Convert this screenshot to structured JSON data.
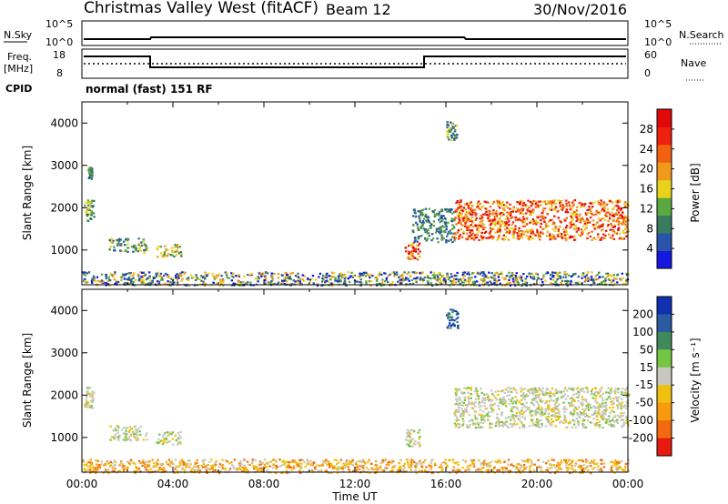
{
  "header": {
    "station": "Christmas Valley West (fitACF)",
    "beam": "Beam 12",
    "date": "30/Nov/2016"
  },
  "nsky_panel": {
    "left_label": "N.Sky",
    "right_label": "N.Search",
    "left_ticks": [
      "10^5",
      "10^0"
    ],
    "right_ticks": [
      "10^5",
      "10^0"
    ]
  },
  "freq_panel": {
    "left_label": "Freq.",
    "left_unit": "[MHz]",
    "right_label": "Nave",
    "left_ticks": [
      "18",
      "8"
    ],
    "right_ticks": [
      "60",
      "0"
    ]
  },
  "cpid": {
    "label": "CPID",
    "value": "normal (fast) 151 RF"
  },
  "chart_data": [
    {
      "type": "heatmap",
      "title": "",
      "ylabel": "Slant Range [km]",
      "xlabel": "",
      "xlim": [
        "00:00",
        "24:00"
      ],
      "ylim": [
        180,
        4500
      ],
      "y_ticks": [
        "1000",
        "2000",
        "3000",
        "4000"
      ],
      "colorbar": {
        "label": "Power [dB]",
        "ticks": [
          "4",
          "8",
          "12",
          "16",
          "20",
          "24",
          "28"
        ],
        "range": [
          0,
          32
        ],
        "colors": [
          "#1418e0",
          "#2a54a8",
          "#3a7a60",
          "#5aa840",
          "#e8d21c",
          "#f09a1c",
          "#f26012",
          "#ee2010",
          "#e00808"
        ]
      },
      "regions": [
        {
          "time": [
            "00:15",
            "00:25"
          ],
          "range": [
            2700,
            3000
          ],
          "level": "low"
        },
        {
          "time": [
            "00:05",
            "00:30"
          ],
          "range": [
            1700,
            2200
          ],
          "level": "low-mid"
        },
        {
          "time": [
            "01:10",
            "02:50"
          ],
          "range": [
            950,
            1300
          ],
          "level": "low-mid"
        },
        {
          "time": [
            "03:15",
            "04:20"
          ],
          "range": [
            850,
            1150
          ],
          "level": "mid"
        },
        {
          "time": [
            "00:00",
            "24:00"
          ],
          "range": [
            180,
            500
          ],
          "level": "mixed"
        },
        {
          "time": [
            "14:10",
            "14:50"
          ],
          "range": [
            800,
            1200
          ],
          "level": "high"
        },
        {
          "time": [
            "14:30",
            "16:20"
          ],
          "range": [
            1200,
            2000
          ],
          "level": "low"
        },
        {
          "time": [
            "16:00",
            "16:30"
          ],
          "range": [
            3600,
            4050
          ],
          "level": "low-mid"
        },
        {
          "time": [
            "16:20",
            "24:00"
          ],
          "range": [
            1250,
            2200
          ],
          "level": "high"
        }
      ]
    },
    {
      "type": "heatmap",
      "title": "",
      "ylabel": "Slant Range [km]",
      "xlabel": "Time UT",
      "xlim": [
        "00:00",
        "24:00"
      ],
      "ylim": [
        180,
        4500
      ],
      "x_ticks": [
        "00:00",
        "04:00",
        "08:00",
        "12:00",
        "16:00",
        "20:00",
        "00:00"
      ],
      "y_ticks": [
        "1000",
        "2000",
        "3000",
        "4000"
      ],
      "colorbar": {
        "label": "Velocity [m s⁻¹]",
        "ticks": [
          "200",
          "100",
          "50",
          "15",
          "-15",
          "-50",
          "-100",
          "-200"
        ],
        "range": [
          -250,
          250
        ],
        "colors": [
          "#1030b0",
          "#2a5aa0",
          "#3f8a5a",
          "#76c646",
          "#c8c8c0",
          "#f0c010",
          "#f89a10",
          "#f26a10",
          "#e81a10"
        ]
      },
      "regions": [
        {
          "time": [
            "00:05",
            "00:30"
          ],
          "range": [
            1700,
            2200
          ],
          "level": "ground"
        },
        {
          "time": [
            "01:10",
            "02:50"
          ],
          "range": [
            950,
            1300
          ],
          "level": "ground"
        },
        {
          "time": [
            "03:15",
            "04:20"
          ],
          "range": [
            850,
            1150
          ],
          "level": "ground"
        },
        {
          "time": [
            "00:00",
            "24:00"
          ],
          "range": [
            180,
            500
          ],
          "level": "slow-negative"
        },
        {
          "time": [
            "14:10",
            "14:50"
          ],
          "range": [
            800,
            1200
          ],
          "level": "ground"
        },
        {
          "time": [
            "16:00",
            "16:30"
          ],
          "range": [
            3600,
            4050
          ],
          "level": "positive"
        },
        {
          "time": [
            "16:20",
            "24:00"
          ],
          "range": [
            1250,
            2200
          ],
          "level": "ground"
        }
      ]
    }
  ]
}
